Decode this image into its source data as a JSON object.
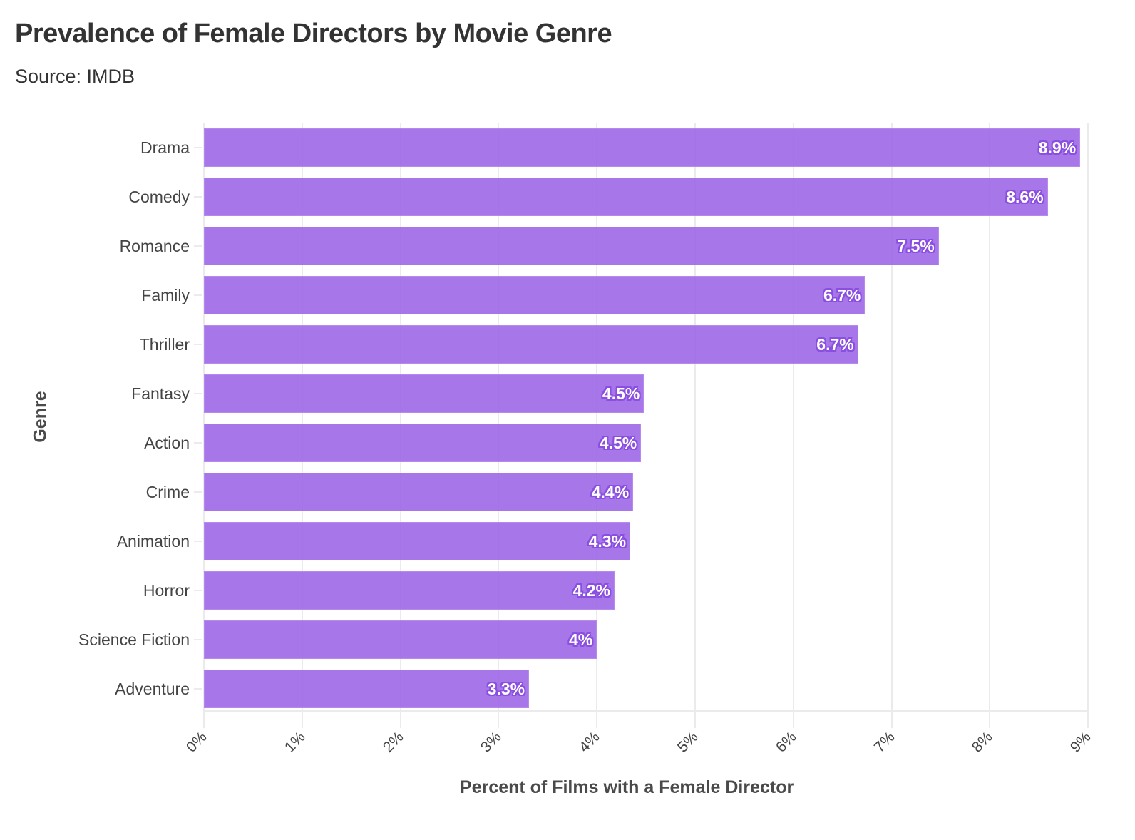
{
  "header": {
    "title": "Prevalence of Female Directors by Movie Genre",
    "subtitle": "Source: IMDB"
  },
  "chart_data": {
    "type": "bar",
    "orientation": "horizontal",
    "title": "Prevalence of Female Directors by Movie Genre",
    "subtitle": "Source: IMDB",
    "xlabel": "Percent of Films with a Female Director",
    "ylabel": "Genre",
    "categories": [
      "Drama",
      "Comedy",
      "Romance",
      "Family",
      "Thriller",
      "Fantasy",
      "Action",
      "Crime",
      "Animation",
      "Horror",
      "Science Fiction",
      "Adventure"
    ],
    "values": [
      8.92,
      8.59,
      7.48,
      6.73,
      6.66,
      4.48,
      4.45,
      4.37,
      4.34,
      4.18,
      4.0,
      3.31
    ],
    "data_labels": [
      "8.9%",
      "8.6%",
      "7.5%",
      "6.7%",
      "6.7%",
      "4.5%",
      "4.5%",
      "4.4%",
      "4.3%",
      "4.2%",
      "4%",
      "3.3%"
    ],
    "xlim": [
      0,
      9
    ],
    "xticks": [
      "0%",
      "1%",
      "2%",
      "3%",
      "4%",
      "5%",
      "6%",
      "7%",
      "8%",
      "9%"
    ],
    "grid": true,
    "legend": "none",
    "colors": {
      "bar": "#a675e8",
      "label_halo": "#8a4fe0",
      "label_text": "#ffffff",
      "grid": "#ebebeb"
    }
  },
  "axes": {
    "x_title": "Percent of Films with a Female Director",
    "y_title": "Genre"
  }
}
